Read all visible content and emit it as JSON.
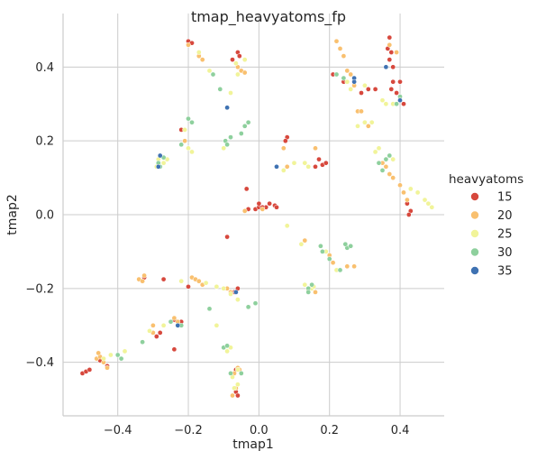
{
  "chart_data": {
    "type": "scatter",
    "title": "tmap_heavyatoms_fp",
    "xlabel": "tmap1",
    "ylabel": "tmap2",
    "xlim": [
      -0.555,
      0.525
    ],
    "ylim": [
      -0.545,
      0.545
    ],
    "xticks": [
      -0.4,
      -0.2,
      0.0,
      0.2,
      0.4
    ],
    "yticks": [
      -0.4,
      -0.2,
      0.0,
      0.2,
      0.4
    ],
    "xtick_labels": [
      "−0.4",
      "−0.2",
      "0.0",
      "0.2",
      "0.4"
    ],
    "ytick_labels": [
      "−0.4",
      "−0.2",
      "0.0",
      "0.2",
      "0.4"
    ],
    "grid": true,
    "legend": {
      "title": "heavyatoms",
      "placement": "right",
      "entries": [
        {
          "label": "15",
          "color": "#d7483d"
        },
        {
          "label": "20",
          "color": "#f9c06f"
        },
        {
          "label": "25",
          "color": "#f1f499"
        },
        {
          "label": "30",
          "color": "#8ed09d"
        },
        {
          "label": "35",
          "color": "#3f72b2"
        }
      ]
    },
    "series": [
      {
        "value": 15,
        "color": "#d7483d",
        "points": [
          [
            -0.5,
            -0.43
          ],
          [
            -0.49,
            -0.425
          ],
          [
            -0.48,
            -0.42
          ],
          [
            -0.45,
            -0.395
          ],
          [
            -0.43,
            -0.41
          ],
          [
            -0.325,
            -0.17
          ],
          [
            -0.33,
            -0.18
          ],
          [
            -0.27,
            -0.175
          ],
          [
            -0.29,
            -0.33
          ],
          [
            -0.28,
            -0.32
          ],
          [
            -0.24,
            -0.365
          ],
          [
            -0.24,
            -0.285
          ],
          [
            -0.22,
            -0.29
          ],
          [
            -0.2,
            -0.195
          ],
          [
            -0.06,
            -0.2
          ],
          [
            -0.07,
            -0.21
          ],
          [
            -0.065,
            -0.48
          ],
          [
            -0.06,
            -0.49
          ],
          [
            -0.065,
            -0.42
          ],
          [
            -0.09,
            -0.06
          ],
          [
            -0.2,
            0.47
          ],
          [
            -0.19,
            0.465
          ],
          [
            -0.06,
            0.44
          ],
          [
            -0.055,
            0.43
          ],
          [
            -0.075,
            0.42
          ],
          [
            -0.22,
            0.23
          ],
          [
            -0.035,
            0.07
          ],
          [
            -0.03,
            0.015
          ],
          [
            -0.01,
            0.015
          ],
          [
            0.0,
            0.02
          ],
          [
            0.02,
            0.02
          ],
          [
            0.03,
            0.03
          ],
          [
            0.045,
            0.025
          ],
          [
            0.05,
            0.02
          ],
          [
            0.08,
            0.21
          ],
          [
            0.075,
            0.2
          ],
          [
            0.17,
            0.15
          ],
          [
            0.18,
            0.135
          ],
          [
            0.16,
            0.13
          ],
          [
            0.19,
            0.14
          ],
          [
            0.21,
            0.38
          ],
          [
            0.24,
            0.36
          ],
          [
            0.29,
            0.33
          ],
          [
            0.31,
            0.34
          ],
          [
            0.33,
            0.34
          ],
          [
            0.37,
            0.48
          ],
          [
            0.365,
            0.45
          ],
          [
            0.375,
            0.44
          ],
          [
            0.37,
            0.42
          ],
          [
            0.38,
            0.4
          ],
          [
            0.38,
            0.36
          ],
          [
            0.39,
            0.33
          ],
          [
            0.375,
            0.34
          ],
          [
            0.4,
            0.36
          ],
          [
            0.41,
            0.3
          ],
          [
            0.42,
            0.03
          ],
          [
            0.43,
            0.01
          ],
          [
            0.425,
            0.0
          ],
          [
            0.0,
            0.03
          ],
          [
            0.01,
            0.02
          ]
        ]
      },
      {
        "value": 20,
        "color": "#f9c06f",
        "points": [
          [
            -0.46,
            -0.39
          ],
          [
            -0.45,
            -0.385
          ],
          [
            -0.44,
            -0.4
          ],
          [
            -0.455,
            -0.375
          ],
          [
            -0.43,
            -0.415
          ],
          [
            -0.34,
            -0.175
          ],
          [
            -0.325,
            -0.165
          ],
          [
            -0.33,
            -0.18
          ],
          [
            -0.3,
            -0.32
          ],
          [
            -0.3,
            -0.3
          ],
          [
            -0.23,
            -0.29
          ],
          [
            -0.24,
            -0.28
          ],
          [
            -0.19,
            -0.17
          ],
          [
            -0.18,
            -0.175
          ],
          [
            -0.17,
            -0.18
          ],
          [
            -0.16,
            -0.19
          ],
          [
            -0.09,
            -0.2
          ],
          [
            -0.08,
            -0.21
          ],
          [
            -0.07,
            -0.43
          ],
          [
            -0.06,
            -0.415
          ],
          [
            -0.055,
            -0.42
          ],
          [
            -0.065,
            -0.47
          ],
          [
            -0.075,
            -0.49
          ],
          [
            -0.2,
            0.46
          ],
          [
            -0.17,
            0.43
          ],
          [
            -0.16,
            0.42
          ],
          [
            -0.06,
            0.4
          ],
          [
            -0.05,
            0.39
          ],
          [
            -0.06,
            0.38
          ],
          [
            -0.04,
            0.385
          ],
          [
            -0.09,
            0.19
          ],
          [
            -0.21,
            0.2
          ],
          [
            -0.04,
            0.01
          ],
          [
            0.01,
            0.015
          ],
          [
            0.07,
            0.18
          ],
          [
            0.08,
            0.13
          ],
          [
            0.16,
            0.18
          ],
          [
            0.22,
            0.47
          ],
          [
            0.23,
            0.45
          ],
          [
            0.24,
            0.43
          ],
          [
            0.25,
            0.39
          ],
          [
            0.26,
            0.38
          ],
          [
            0.27,
            0.35
          ],
          [
            0.28,
            0.28
          ],
          [
            0.29,
            0.28
          ],
          [
            0.3,
            0.25
          ],
          [
            0.31,
            0.24
          ],
          [
            0.33,
            0.17
          ],
          [
            0.35,
            0.14
          ],
          [
            0.36,
            0.13
          ],
          [
            0.37,
            0.11
          ],
          [
            0.38,
            0.1
          ],
          [
            0.4,
            0.08
          ],
          [
            0.41,
            0.06
          ],
          [
            0.42,
            0.04
          ],
          [
            0.39,
            0.44
          ],
          [
            0.37,
            0.46
          ],
          [
            0.13,
            -0.07
          ],
          [
            0.14,
            -0.205
          ],
          [
            0.16,
            -0.21
          ],
          [
            0.2,
            -0.11
          ],
          [
            0.21,
            -0.13
          ],
          [
            0.25,
            -0.14
          ],
          [
            0.27,
            -0.14
          ],
          [
            0.13,
            0.14
          ]
        ]
      },
      {
        "value": 25,
        "color": "#f1f499",
        "points": [
          [
            -0.42,
            -0.38
          ],
          [
            -0.44,
            -0.39
          ],
          [
            -0.38,
            -0.37
          ],
          [
            -0.31,
            -0.315
          ],
          [
            -0.27,
            -0.3
          ],
          [
            -0.22,
            -0.18
          ],
          [
            -0.15,
            -0.185
          ],
          [
            -0.12,
            -0.195
          ],
          [
            -0.1,
            -0.2
          ],
          [
            -0.08,
            -0.215
          ],
          [
            -0.06,
            -0.23
          ],
          [
            -0.12,
            -0.3
          ],
          [
            -0.08,
            -0.36
          ],
          [
            -0.09,
            -0.37
          ],
          [
            -0.06,
            -0.42
          ],
          [
            -0.075,
            -0.44
          ],
          [
            -0.06,
            -0.46
          ],
          [
            -0.07,
            -0.47
          ],
          [
            -0.21,
            0.23
          ],
          [
            -0.2,
            0.18
          ],
          [
            -0.19,
            0.17
          ],
          [
            -0.27,
            0.14
          ],
          [
            -0.285,
            0.15
          ],
          [
            -0.29,
            0.13
          ],
          [
            -0.26,
            0.15
          ],
          [
            -0.08,
            0.33
          ],
          [
            -0.06,
            0.38
          ],
          [
            -0.17,
            0.44
          ],
          [
            -0.065,
            0.41
          ],
          [
            -0.04,
            0.42
          ],
          [
            -0.14,
            0.39
          ],
          [
            -0.09,
            0.19
          ],
          [
            -0.1,
            0.18
          ],
          [
            0.07,
            0.12
          ],
          [
            0.1,
            0.14
          ],
          [
            0.13,
            0.14
          ],
          [
            0.14,
            0.13
          ],
          [
            0.08,
            -0.03
          ],
          [
            0.12,
            -0.08
          ],
          [
            0.15,
            -0.2
          ],
          [
            0.14,
            -0.21
          ],
          [
            0.13,
            -0.19
          ],
          [
            0.155,
            -0.195
          ],
          [
            0.19,
            -0.1
          ],
          [
            0.22,
            -0.15
          ],
          [
            0.28,
            0.24
          ],
          [
            0.3,
            0.25
          ],
          [
            0.32,
            0.25
          ],
          [
            0.34,
            0.18
          ],
          [
            0.33,
            0.17
          ],
          [
            0.37,
            0.16
          ],
          [
            0.38,
            0.15
          ],
          [
            0.43,
            0.07
          ],
          [
            0.45,
            0.06
          ],
          [
            0.47,
            0.04
          ],
          [
            0.48,
            0.03
          ],
          [
            0.49,
            0.02
          ],
          [
            0.36,
            0.3
          ],
          [
            0.35,
            0.31
          ],
          [
            0.38,
            0.3
          ],
          [
            0.4,
            0.31
          ],
          [
            0.25,
            0.36
          ],
          [
            0.26,
            0.34
          ],
          [
            0.3,
            0.35
          ]
        ]
      },
      {
        "value": 30,
        "color": "#8ed09d",
        "points": [
          [
            -0.4,
            -0.38
          ],
          [
            -0.39,
            -0.39
          ],
          [
            -0.33,
            -0.345
          ],
          [
            -0.22,
            -0.3
          ],
          [
            -0.14,
            -0.255
          ],
          [
            -0.1,
            -0.36
          ],
          [
            -0.09,
            -0.355
          ],
          [
            -0.08,
            -0.43
          ],
          [
            -0.05,
            -0.43
          ],
          [
            -0.2,
            0.26
          ],
          [
            -0.19,
            0.25
          ],
          [
            -0.22,
            0.19
          ],
          [
            -0.095,
            0.2
          ],
          [
            -0.09,
            0.19
          ],
          [
            -0.08,
            0.21
          ],
          [
            -0.04,
            0.24
          ],
          [
            -0.03,
            0.25
          ],
          [
            -0.05,
            0.22
          ],
          [
            -0.11,
            0.34
          ],
          [
            -0.09,
            0.29
          ],
          [
            -0.13,
            0.38
          ],
          [
            -0.285,
            0.14
          ],
          [
            -0.28,
            0.13
          ],
          [
            -0.27,
            0.155
          ],
          [
            -0.25,
            -0.29
          ],
          [
            0.175,
            -0.085
          ],
          [
            0.18,
            -0.1
          ],
          [
            0.2,
            -0.12
          ],
          [
            0.23,
            -0.15
          ],
          [
            0.25,
            -0.09
          ],
          [
            0.245,
            -0.08
          ],
          [
            0.26,
            -0.085
          ],
          [
            0.14,
            -0.2
          ],
          [
            0.15,
            -0.19
          ],
          [
            0.35,
            0.12
          ],
          [
            0.34,
            0.14
          ],
          [
            0.36,
            0.15
          ],
          [
            0.37,
            0.16
          ],
          [
            0.39,
            0.3
          ],
          [
            0.4,
            0.32
          ],
          [
            0.22,
            0.38
          ],
          [
            0.24,
            0.37
          ],
          [
            -0.01,
            -0.24
          ],
          [
            -0.03,
            -0.25
          ],
          [
            0.14,
            -0.21
          ]
        ]
      },
      {
        "value": 35,
        "color": "#3f72b2",
        "points": [
          [
            -0.28,
            0.16
          ],
          [
            -0.285,
            0.13
          ],
          [
            -0.09,
            0.29
          ],
          [
            -0.065,
            -0.21
          ],
          [
            0.05,
            0.13
          ],
          [
            0.27,
            0.37
          ],
          [
            0.4,
            0.31
          ],
          [
            -0.23,
            -0.3
          ],
          [
            0.36,
            0.4
          ],
          [
            0.27,
            0.36
          ]
        ]
      }
    ]
  }
}
